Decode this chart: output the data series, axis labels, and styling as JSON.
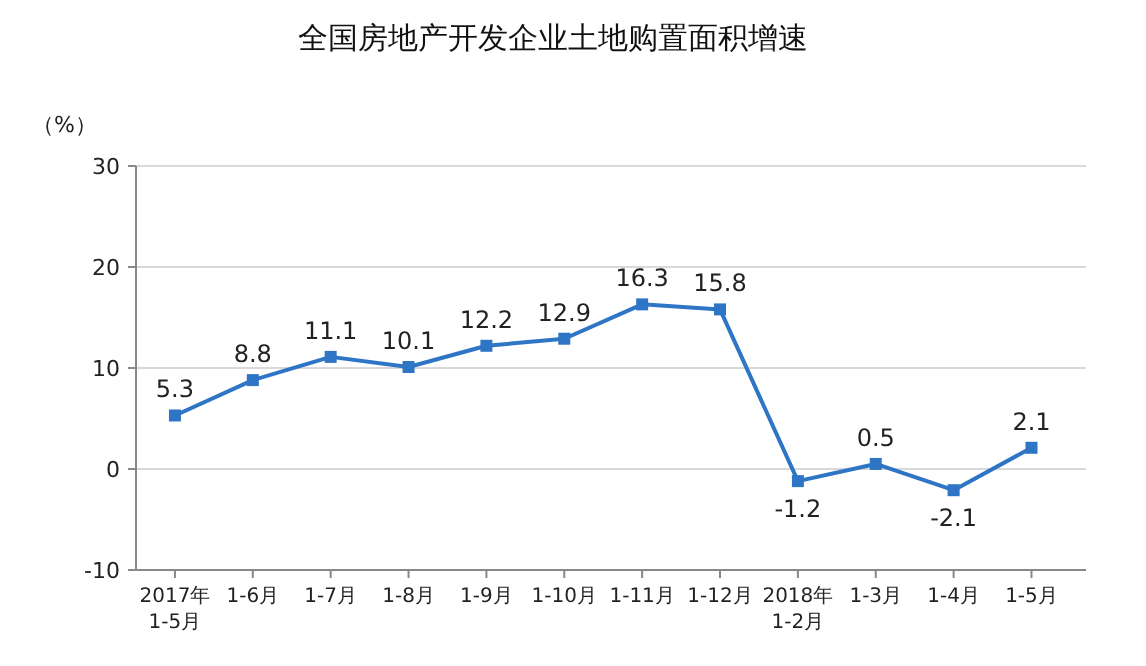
{
  "chart_data": {
    "type": "line",
    "title": "全国房地产开发企业土地购置面积增速",
    "ylabel": "（%）",
    "categories": [
      "2017年\n1-5月",
      "1-6月",
      "1-7月",
      "1-8月",
      "1-9月",
      "1-10月",
      "1-11月",
      "1-12月",
      "2018年\n1-2月",
      "1-3月",
      "1-4月",
      "1-5月"
    ],
    "series": [
      {
        "color": "#2e75c6",
        "values": [
          5.3,
          8.8,
          11.1,
          10.1,
          12.2,
          12.9,
          16.3,
          15.8,
          -1.2,
          0.5,
          -2.1,
          2.1
        ]
      }
    ],
    "ylim": [
      -10,
      30
    ],
    "yticks": [
      -10,
      0,
      10,
      20,
      30
    ],
    "grid": "y",
    "marker": "square",
    "line_style": "solid",
    "data_labels": true
  }
}
